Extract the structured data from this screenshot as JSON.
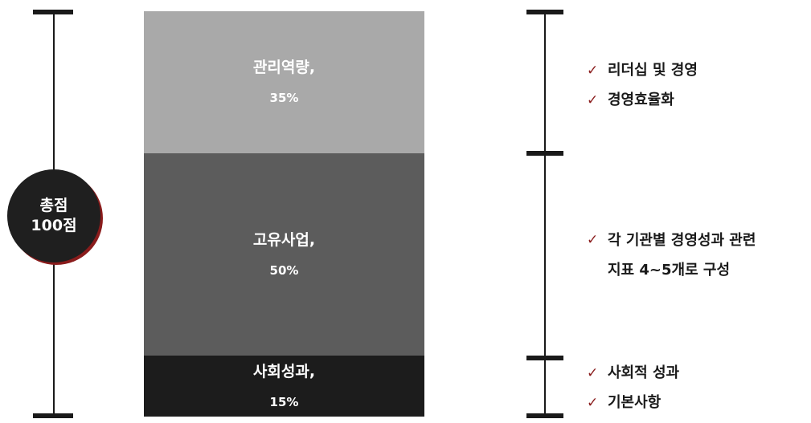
{
  "total_badge": {
    "line1": "총점",
    "line2": "100점"
  },
  "chart_data": {
    "type": "bar",
    "stacked": true,
    "categories": [
      "관리역량",
      "고유사업",
      "사회성과"
    ],
    "values": [
      35,
      50,
      15
    ],
    "labels": [
      "관리역량,",
      "고유사업,",
      "사회성과,"
    ],
    "value_labels": [
      "35%",
      "50%",
      "15%"
    ],
    "colors": [
      "#a9a9a9",
      "#5c5c5c",
      "#1c1c1c"
    ],
    "ylim": [
      0,
      100
    ]
  },
  "criteria": [
    {
      "items": [
        {
          "text": "리더십 및 경영"
        },
        {
          "text": "경영효율화"
        }
      ]
    },
    {
      "items": [
        {
          "text": "각 기관별 경영성과 관련\n지표 4~5개로 구성"
        }
      ]
    },
    {
      "items": [
        {
          "text": "사회적 성과"
        },
        {
          "text": "기본사항"
        }
      ]
    }
  ],
  "check_symbol": "✓"
}
